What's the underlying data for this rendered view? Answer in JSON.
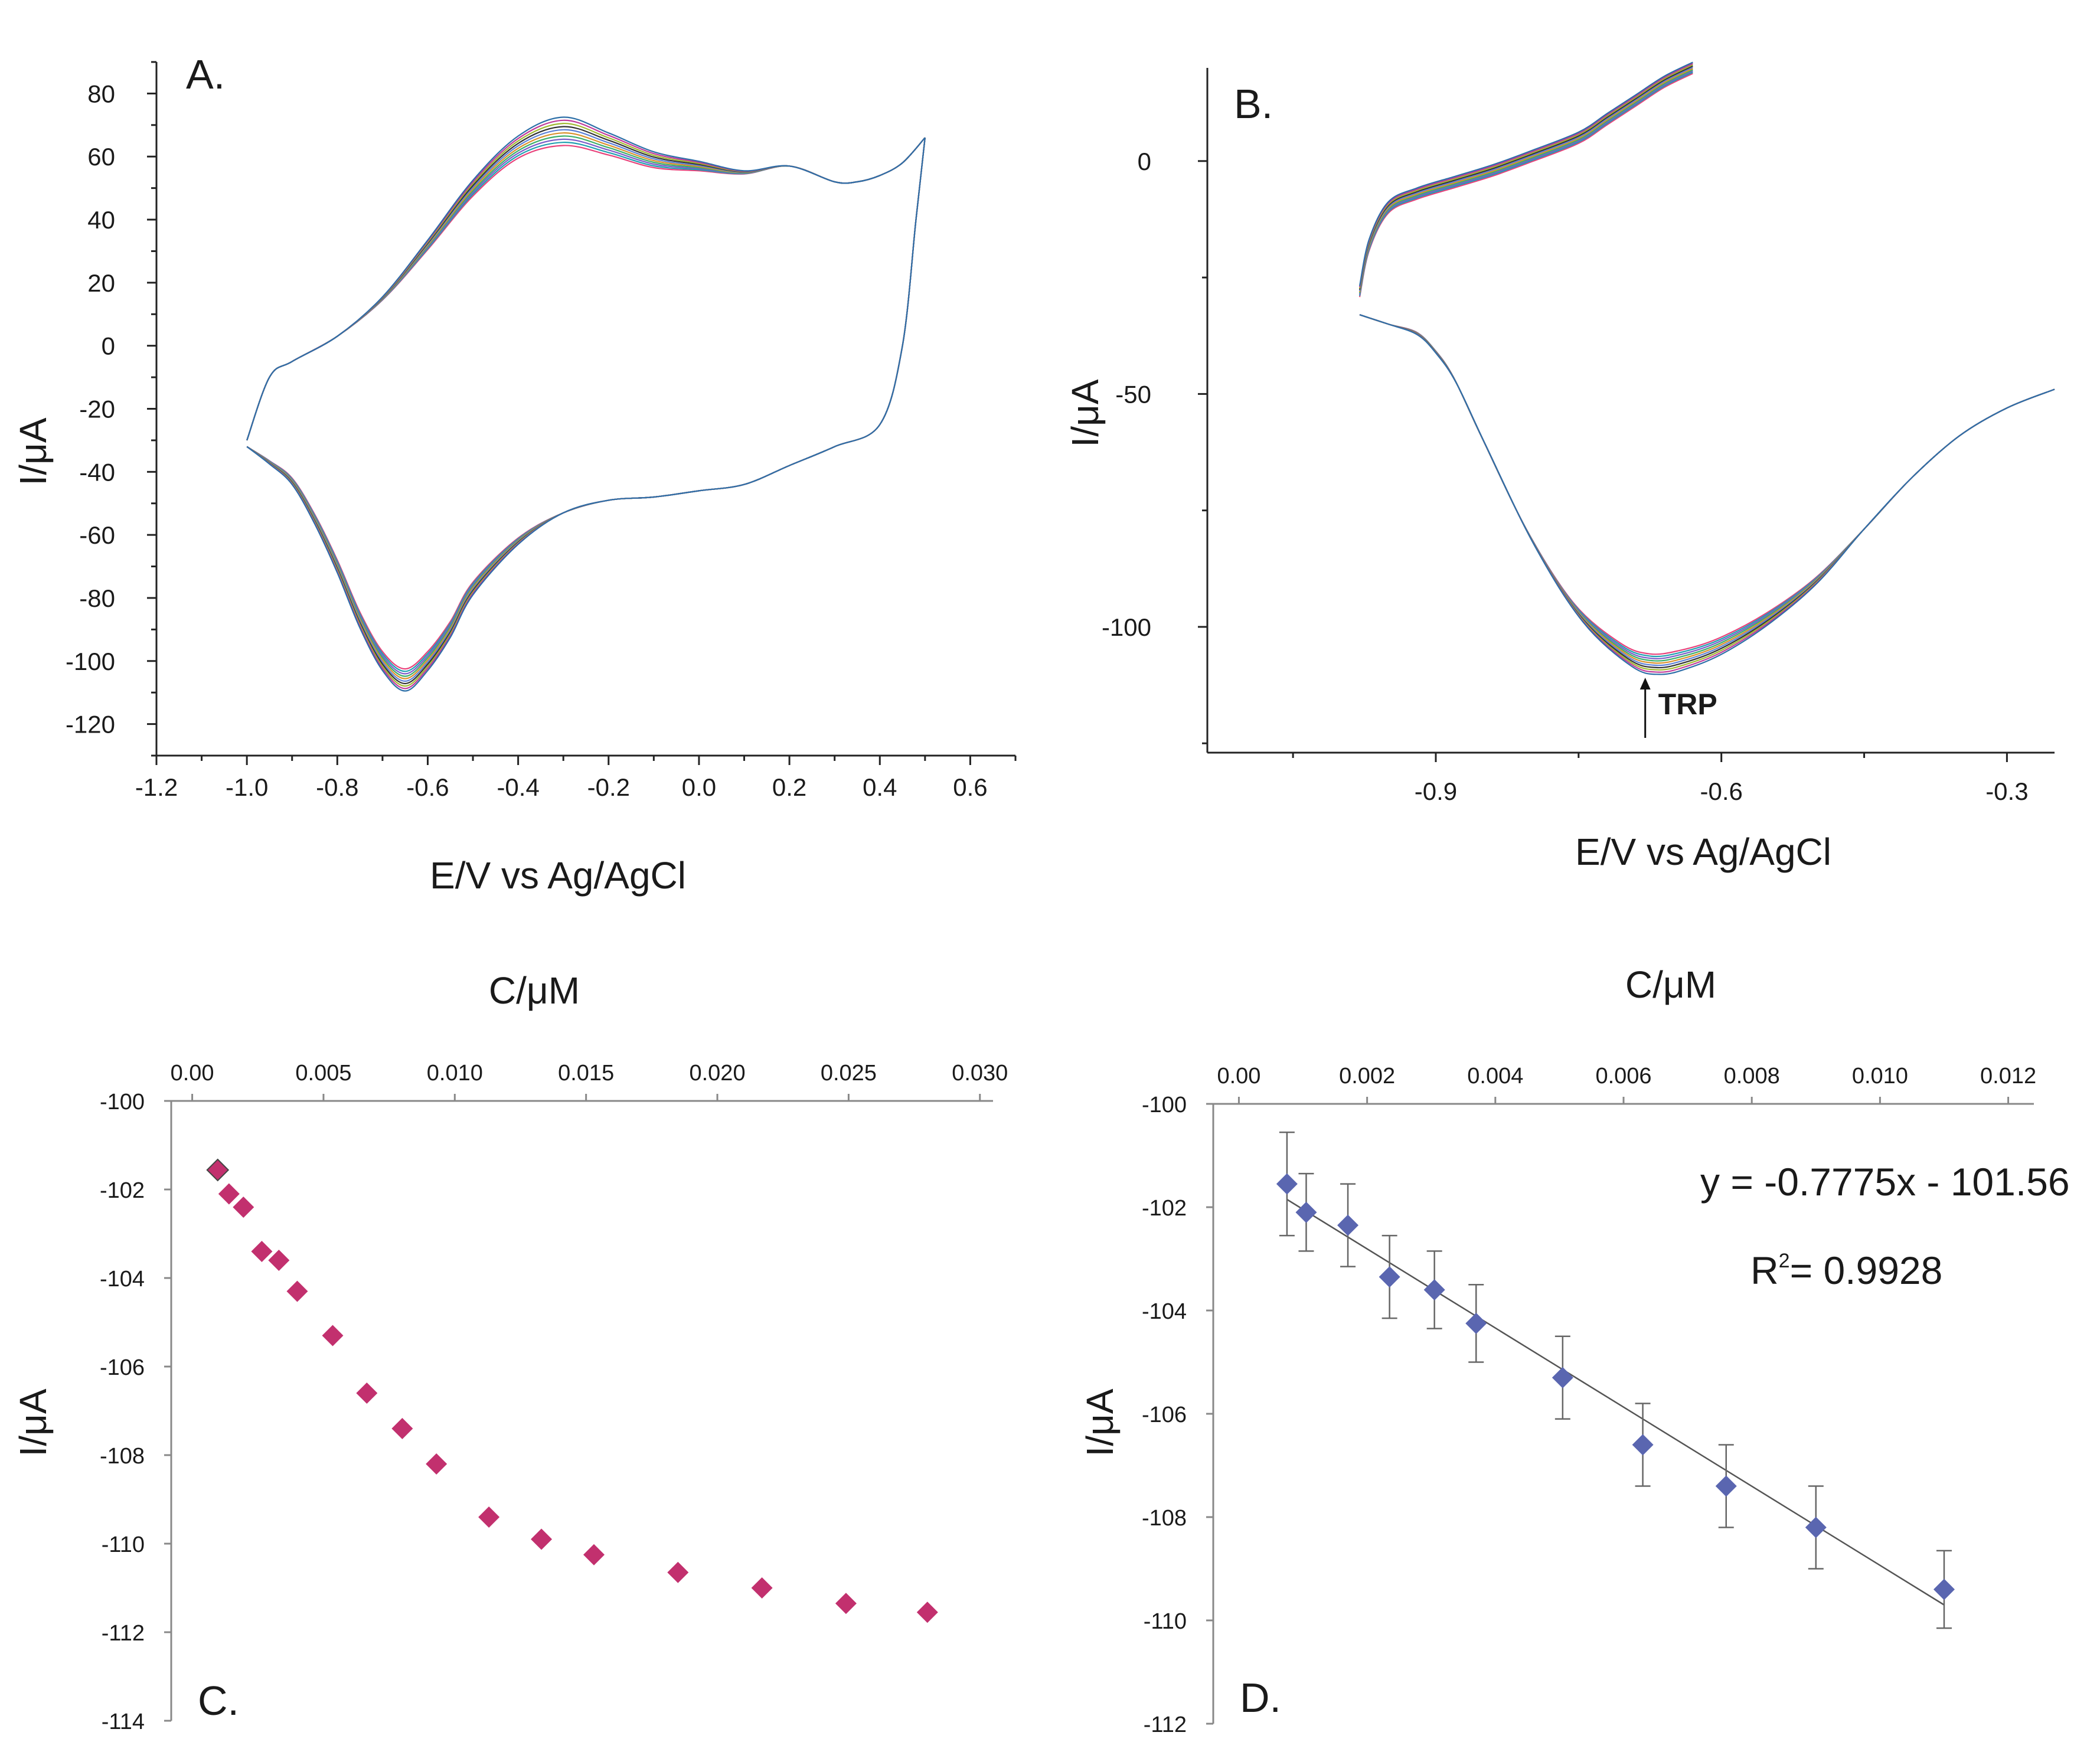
{
  "chart_data": [
    {
      "panel": "A.",
      "type": "line",
      "xlabel": "E/V vs Ag/AgCl",
      "ylabel": "I/μA",
      "xlim": [
        -1.2,
        0.7
      ],
      "ylim": [
        -130,
        90
      ],
      "xticks": [
        -1.2,
        -1.0,
        -0.8,
        -0.6,
        -0.4,
        -0.2,
        0.0,
        0.2,
        0.4,
        0.6
      ],
      "xtick_labels": [
        "-1.2",
        "-1.0",
        "-0.8",
        "-0.6",
        "-0.4",
        "-0.2",
        "0.0",
        "0.2",
        "0.4",
        "0.6"
      ],
      "yticks": [
        80,
        60,
        40,
        20,
        0,
        -20,
        -40,
        -60,
        -80,
        -100,
        -120
      ],
      "ytick_labels": [
        "80",
        "60",
        "40",
        "20",
        "0",
        "-20",
        "-40",
        "-60",
        "-80",
        "-100",
        "-120"
      ],
      "series_colors": [
        "#e8417a",
        "#1f9fb0",
        "#7a5cc8",
        "#3cae6a",
        "#d9902a",
        "#5b7fd6",
        "#333333",
        "#a0b830",
        "#c03a9a",
        "#2d6fa8"
      ],
      "anodic": {
        "x": [
          -1.0,
          -0.95,
          -0.9,
          -0.8,
          -0.7,
          -0.6,
          -0.5,
          -0.4,
          -0.3,
          -0.2,
          -0.1,
          0.0,
          0.1,
          0.2,
          0.3,
          0.35,
          0.4,
          0.45,
          0.5
        ],
        "y": [
          -30,
          -10,
          -5,
          3,
          15,
          32,
          50,
          63,
          68,
          64,
          59,
          57,
          55,
          57,
          52,
          52,
          54,
          58,
          66
        ]
      },
      "cathodic": {
        "x": [
          0.5,
          0.48,
          0.45,
          0.4,
          0.3,
          0.2,
          0.1,
          0.0,
          -0.1,
          -0.2,
          -0.3,
          -0.4,
          -0.5,
          -0.55,
          -0.6,
          -0.65,
          -0.7,
          -0.75,
          -0.8,
          -0.85,
          -0.9,
          -0.95,
          -1.0
        ],
        "y": [
          66,
          40,
          0,
          -25,
          -32,
          -38,
          -44,
          -46,
          -48,
          -49,
          -53,
          -62,
          -77,
          -90,
          -100,
          -106,
          -100,
          -87,
          -70,
          -55,
          -43,
          -37,
          -32
        ]
      }
    },
    {
      "panel": "B.",
      "type": "line",
      "xlabel": "E/V vs Ag/AgCl",
      "ylabel": "I/μA",
      "xlim": [
        -1.14,
        -0.25
      ],
      "ylim": [
        -127,
        20
      ],
      "xticks": [
        -0.9,
        -0.6,
        -0.3
      ],
      "xtick_labels": [
        "-0.9",
        "-0.6",
        "-0.3"
      ],
      "yticks": [
        0,
        -50,
        -100
      ],
      "ytick_labels": [
        "0",
        "-50",
        "-100"
      ],
      "annotation": "TRP",
      "annotation_x": -0.68,
      "series_colors": [
        "#e8417a",
        "#1f9fb0",
        "#7a5cc8",
        "#3cae6a",
        "#d9902a",
        "#5b7fd6",
        "#333333",
        "#a0b830",
        "#c03a9a",
        "#2d6fa8"
      ],
      "upper": {
        "x": [
          -0.98,
          -0.97,
          -0.95,
          -0.92,
          -0.88,
          -0.84,
          -0.8,
          -0.75,
          -0.72,
          -0.69,
          -0.66,
          -0.63
        ],
        "y": [
          -28,
          -18,
          -10,
          -7,
          -4.5,
          -2,
          1,
          5,
          9,
          13,
          17,
          20
        ]
      },
      "lower": {
        "x": [
          -0.98,
          -0.95,
          -0.92,
          -0.9,
          -0.88,
          -0.85,
          -0.8,
          -0.75,
          -0.7,
          -0.67,
          -0.64,
          -0.6,
          -0.55,
          -0.5,
          -0.45,
          -0.4,
          -0.35,
          -0.3,
          -0.25
        ],
        "y": [
          -33,
          -35,
          -37,
          -41,
          -47,
          -60,
          -81,
          -97,
          -106,
          -108,
          -107,
          -104,
          -98,
          -90,
          -79,
          -68,
          -59,
          -53,
          -49
        ]
      }
    },
    {
      "panel": "C.",
      "type": "scatter",
      "title": "C/μM",
      "xlabel": "C/μM",
      "ylabel": "I/μA",
      "xlim": [
        -0.0008,
        0.0305
      ],
      "ylim": [
        -114,
        -100
      ],
      "xticks": [
        0.0,
        0.005,
        0.01,
        0.015,
        0.02,
        0.025,
        0.03
      ],
      "xtick_labels": [
        "0.00",
        "0.005",
        "0.010",
        "0.015",
        "0.020",
        "0.025",
        "0.030"
      ],
      "yticks": [
        -100,
        -102,
        -104,
        -106,
        -108,
        -110,
        -112,
        -114
      ],
      "ytick_labels": [
        "-100",
        "-102",
        "-104",
        "-106",
        "-108",
        "-110",
        "-112",
        "-114"
      ],
      "color": "#c2306e",
      "x": [
        0.00097,
        0.0014,
        0.00195,
        0.00265,
        0.0033,
        0.004,
        0.00535,
        0.00665,
        0.008,
        0.0093,
        0.0113,
        0.0133,
        0.0153,
        0.0185,
        0.0217,
        0.0249,
        0.028
      ],
      "y": [
        -101.56,
        -102.1,
        -102.4,
        -103.4,
        -103.6,
        -104.3,
        -105.3,
        -106.6,
        -107.4,
        -108.2,
        -109.4,
        -109.9,
        -110.25,
        -110.65,
        -111.0,
        -111.35,
        -111.55
      ]
    },
    {
      "panel": "D.",
      "type": "scatter",
      "title": "C/μM",
      "xlabel": "C/μM",
      "ylabel": "I/μA",
      "xlim": [
        -0.0004,
        0.0124
      ],
      "ylim": [
        -112,
        -100
      ],
      "xticks": [
        0.0,
        0.002,
        0.004,
        0.006,
        0.008,
        0.01,
        0.012
      ],
      "xtick_labels": [
        "0.00",
        "0.002",
        "0.004",
        "0.006",
        "0.008",
        "0.010",
        "0.012"
      ],
      "yticks": [
        -100,
        -102,
        -104,
        -106,
        -108,
        -110,
        -112
      ],
      "ytick_labels": [
        "-100",
        "-102",
        "-104",
        "-106",
        "-108",
        "-110",
        "-112"
      ],
      "color": "#5a66b0",
      "x": [
        0.00075,
        0.00105,
        0.0017,
        0.00235,
        0.00305,
        0.0037,
        0.00505,
        0.0063,
        0.0076,
        0.009,
        0.011
      ],
      "y": [
        -101.55,
        -102.1,
        -102.35,
        -103.35,
        -103.6,
        -104.25,
        -105.3,
        -106.6,
        -107.4,
        -108.2,
        -109.4
      ],
      "error": [
        1.0,
        0.75,
        0.8,
        0.8,
        0.75,
        0.75,
        0.8,
        0.8,
        0.8,
        0.8,
        0.75
      ],
      "fit_x": [
        0.00075,
        0.011
      ],
      "fit_y": [
        -101.85,
        -109.7
      ],
      "equation": "y = -0.7775x - 101.56",
      "r2_prefix": "R",
      "r2_sup": "2",
      "r2_value": "= 0.9928"
    }
  ]
}
